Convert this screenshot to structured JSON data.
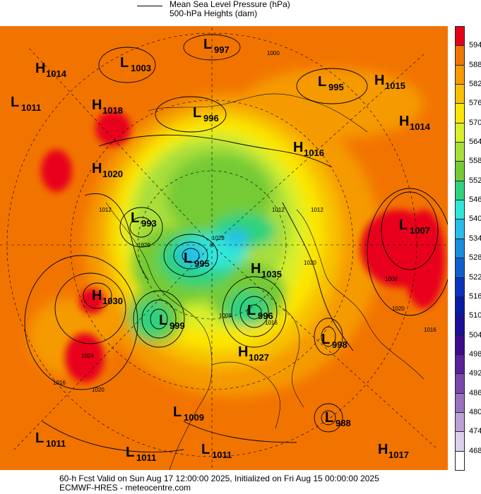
{
  "legend": {
    "mslp": "Mean Sea Level Pressure (hPa)",
    "heights": "500-hPa Heights (dam)"
  },
  "colorbar": {
    "labels": [
      "594",
      "588",
      "582",
      "576",
      "570",
      "564",
      "558",
      "552",
      "546",
      "540",
      "534",
      "528",
      "522",
      "516",
      "510",
      "504",
      "498",
      "492",
      "486",
      "480",
      "474",
      "468"
    ],
    "colors": [
      "#e8001a",
      "#f27400",
      "#f59a00",
      "#f8c000",
      "#fae600",
      "#d8ef2a",
      "#a9de3a",
      "#74cb34",
      "#2fd27e",
      "#30e6d8",
      "#26bde8",
      "#178ede",
      "#105fd0",
      "#0a34c0",
      "#071ba8",
      "#1c0f98",
      "#3d0b8c",
      "#5a2198",
      "#7a48aa",
      "#9a71bf",
      "#bba1d5",
      "#ddd0ea",
      "#ffffff"
    ]
  },
  "centers": [
    {
      "type": "H",
      "value": "1014"
    },
    {
      "type": "L",
      "value": "1003"
    },
    {
      "type": "L",
      "value": "997"
    },
    {
      "type": "L",
      "value": "995"
    },
    {
      "type": "H",
      "value": "1015"
    },
    {
      "type": "L",
      "value": "1011"
    },
    {
      "type": "H",
      "value": "1018"
    },
    {
      "type": "L",
      "value": "996"
    },
    {
      "type": "H",
      "value": "1014"
    },
    {
      "type": "H",
      "value": "1016"
    },
    {
      "type": "H",
      "value": "1020"
    },
    {
      "type": "L",
      "value": "993"
    },
    {
      "type": "L",
      "value": "1007"
    },
    {
      "type": "L",
      "value": "995"
    },
    {
      "type": "H",
      "value": "1035"
    },
    {
      "type": "H",
      "value": "1030"
    },
    {
      "type": "L",
      "value": "999"
    },
    {
      "type": "L",
      "value": "996"
    },
    {
      "type": "L",
      "value": "998"
    },
    {
      "type": "H",
      "value": "1027"
    },
    {
      "type": "L",
      "value": "1009"
    },
    {
      "type": "L",
      "value": "988"
    },
    {
      "type": "L",
      "value": "1011"
    },
    {
      "type": "L",
      "value": "1011"
    },
    {
      "type": "L",
      "value": "1011"
    },
    {
      "type": "H",
      "value": "1017"
    }
  ],
  "isobar_labels": [
    "1000",
    "1012",
    "1012",
    "1012",
    "1008",
    "1016",
    "1020",
    "1028",
    "1008",
    "1020",
    "1024",
    "1016",
    "1020",
    "1016",
    "1020"
  ],
  "footer": {
    "line1": "60-h Fcst Valid on Sun Aug 17 12:00:00 2025, Initialized on Fri Aug 15 00:00:00 2025",
    "line2": "ECMWF-HRES - meteocentre.com"
  }
}
